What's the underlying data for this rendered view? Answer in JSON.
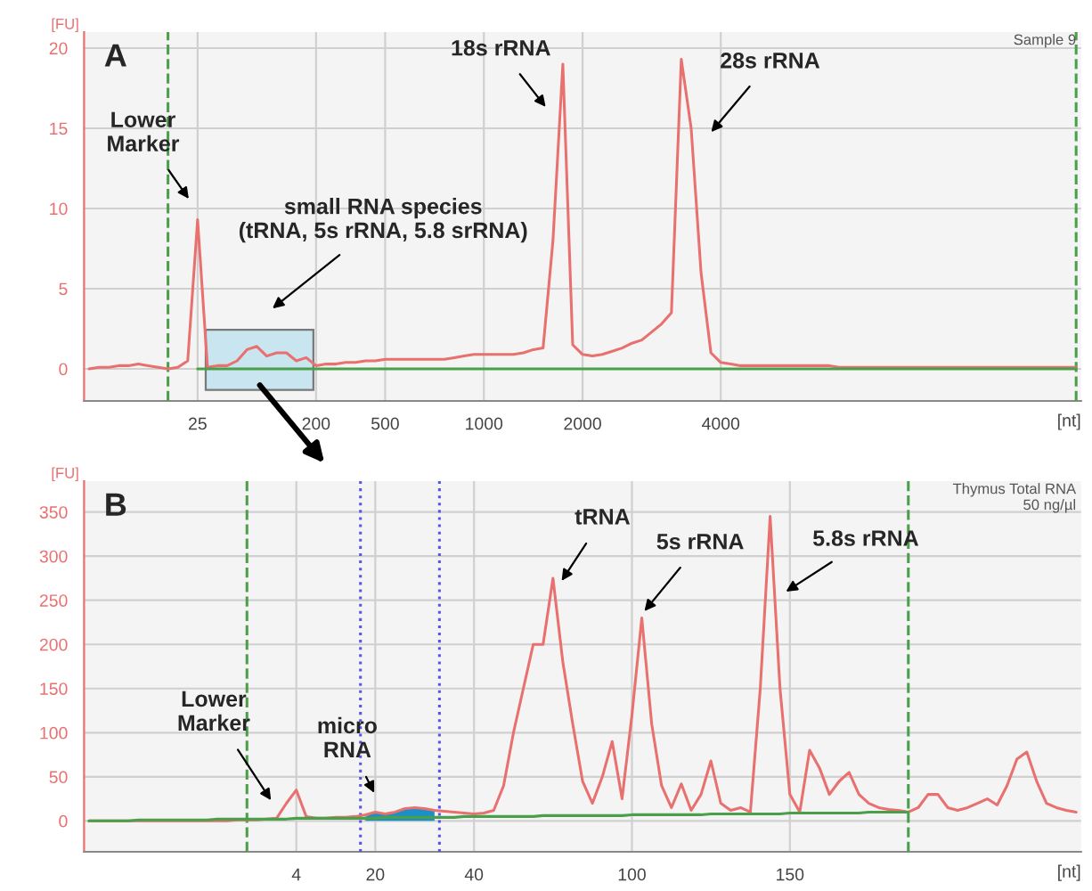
{
  "chart_data": [
    {
      "type": "line",
      "title": "A",
      "ylabel": "[FU]",
      "xlabel": "[nt]",
      "ylim": [
        -2,
        21
      ],
      "yticks": [
        0,
        5,
        10,
        15,
        20
      ],
      "grid": true,
      "categories": [
        null,
        null,
        null,
        null,
        null,
        null,
        null,
        null,
        null,
        null,
        null,
        "25",
        null,
        null,
        null,
        null,
        null,
        null,
        null,
        null,
        null,
        null,
        null,
        "200",
        null,
        null,
        null,
        null,
        null,
        null,
        "500",
        null,
        null,
        null,
        null,
        null,
        null,
        null,
        null,
        null,
        "1000",
        null,
        null,
        null,
        null,
        null,
        null,
        null,
        null,
        null,
        "2000",
        null,
        null,
        null,
        null,
        null,
        null,
        null,
        null,
        null,
        null,
        null,
        null,
        null,
        "4000",
        null,
        null,
        null,
        null,
        null,
        null,
        null,
        null,
        null,
        null,
        null,
        null,
        null,
        null,
        null,
        null,
        null,
        null,
        null,
        null,
        null,
        null,
        null,
        null,
        null,
        null,
        null,
        null,
        null,
        null,
        null,
        null,
        null,
        null,
        null,
        null
      ],
      "series": [
        {
          "color": "#e8706f",
          "values": [
            0,
            0.1,
            0.1,
            0.2,
            0.2,
            0.3,
            0.2,
            0.1,
            0,
            0.1,
            0.5,
            9.3,
            0.1,
            0.2,
            0.2,
            0.5,
            1.2,
            1.4,
            0.8,
            1.0,
            1.0,
            0.5,
            0.7,
            0.2,
            0.3,
            0.3,
            0.4,
            0.4,
            0.5,
            0.5,
            0.6,
            0.6,
            0.6,
            0.6,
            0.6,
            0.6,
            0.6,
            0.7,
            0.8,
            0.9,
            0.9,
            0.9,
            0.9,
            0.9,
            1.0,
            1.2,
            1.3,
            8,
            19,
            1.5,
            0.9,
            0.8,
            0.9,
            1.1,
            1.3,
            1.6,
            1.8,
            2.3,
            2.8,
            3.5,
            19.3,
            15,
            6,
            1,
            0.4,
            0.3,
            0.2,
            0.2,
            0.2,
            0.2,
            0.2,
            0.2,
            0.2,
            0.2,
            0.2,
            0.2,
            0.1,
            0.1,
            0.1,
            0.1,
            0.1,
            0.1,
            0.1,
            0.1,
            0.1,
            0.1,
            0.1,
            0.1,
            0.1,
            0.1,
            0.1,
            0.1,
            0.1,
            0.1,
            0.1,
            0.1,
            0.1,
            0.1,
            0.1,
            0.1,
            0.1
          ]
        },
        {
          "color": "#4aa04a",
          "values": [
            null,
            null,
            null,
            null,
            null,
            null,
            null,
            null,
            null,
            null,
            null,
            0,
            0,
            0,
            0,
            0,
            0,
            0,
            0,
            0,
            0,
            0,
            0,
            0,
            0,
            0,
            0,
            0,
            0,
            0,
            0,
            0,
            0,
            0,
            0,
            0,
            0,
            0,
            0,
            0,
            0,
            0,
            0,
            0,
            0,
            0,
            0,
            0,
            0,
            0,
            0,
            0,
            0,
            0,
            0,
            0,
            0,
            0,
            0,
            0,
            0,
            0,
            0,
            0,
            0,
            0,
            0,
            0,
            0,
            0,
            0,
            0,
            0,
            0,
            0,
            0,
            0,
            0,
            0,
            0,
            0,
            0,
            0,
            0,
            0,
            0,
            0,
            0,
            0,
            0,
            0,
            0,
            0,
            0,
            0,
            0,
            0,
            0,
            0,
            0,
            0
          ]
        }
      ],
      "annotations": [
        "Lower\nMarker",
        "small RNA species\n(tRNA, 5s rRNA, 5.8 srRNA)",
        "18s rRNA",
        "28s rRNA",
        "Sample 9"
      ]
    },
    {
      "type": "line",
      "title": "B",
      "ylabel": "[FU]",
      "xlabel": "[nt]",
      "ylim": [
        -35,
        385
      ],
      "yticks": [
        0,
        50,
        100,
        150,
        200,
        250,
        300,
        350
      ],
      "grid": true,
      "categories": [
        null,
        null,
        null,
        null,
        null,
        null,
        null,
        null,
        null,
        null,
        null,
        null,
        null,
        null,
        null,
        null,
        null,
        null,
        null,
        null,
        null,
        "4",
        null,
        null,
        null,
        null,
        null,
        null,
        null,
        "20",
        null,
        null,
        null,
        null,
        null,
        null,
        null,
        null,
        null,
        "40",
        null,
        null,
        null,
        null,
        null,
        null,
        null,
        null,
        null,
        null,
        null,
        null,
        null,
        null,
        null,
        "100",
        null,
        null,
        null,
        null,
        null,
        null,
        null,
        null,
        null,
        null,
        null,
        null,
        null,
        null,
        null,
        "150",
        null,
        null,
        null,
        null,
        null,
        null,
        null,
        null,
        null,
        null,
        null,
        null,
        null,
        null,
        null,
        null,
        null,
        null,
        null,
        null,
        null,
        null,
        null,
        null,
        null,
        null,
        null,
        null,
        null
      ],
      "series": [
        {
          "color": "#e8706f",
          "values": [
            0,
            0,
            0,
            0,
            0,
            0,
            0,
            0,
            0,
            0,
            0,
            0,
            0,
            0,
            0,
            1,
            1,
            1,
            2,
            3,
            20,
            35,
            5,
            3,
            3,
            4,
            4,
            5,
            7,
            10,
            8,
            10,
            14,
            15,
            14,
            12,
            11,
            10,
            9,
            8,
            9,
            12,
            40,
            100,
            150,
            200,
            200,
            275,
            180,
            110,
            45,
            20,
            50,
            90,
            25,
            120,
            230,
            110,
            40,
            15,
            42,
            12,
            30,
            68,
            20,
            12,
            15,
            10,
            150,
            345,
            150,
            30,
            10,
            80,
            60,
            30,
            45,
            55,
            30,
            20,
            15,
            13,
            12,
            10,
            15,
            30,
            30,
            15,
            12,
            15,
            20,
            25,
            18,
            40,
            70,
            78,
            45,
            20,
            15,
            12,
            10
          ]
        },
        {
          "color": "#4aa04a",
          "values": [
            0,
            0,
            0,
            0,
            0,
            1,
            1,
            1,
            1,
            1,
            1,
            1,
            1,
            2,
            2,
            2,
            2,
            2,
            2,
            2,
            2,
            3,
            3,
            3,
            3,
            3,
            3,
            3,
            3,
            3,
            4,
            4,
            4,
            4,
            4,
            4,
            4,
            4,
            5,
            5,
            5,
            5,
            5,
            5,
            5,
            5,
            6,
            6,
            6,
            6,
            6,
            6,
            6,
            6,
            6,
            7,
            7,
            7,
            7,
            7,
            7,
            7,
            7,
            8,
            8,
            8,
            8,
            8,
            8,
            8,
            8,
            9,
            9,
            9,
            9,
            9,
            9,
            9,
            9,
            10,
            10,
            10,
            10,
            10,
            null,
            null,
            null,
            null,
            null,
            null,
            null,
            null,
            null,
            null,
            null,
            null,
            null,
            null,
            null,
            null,
            null
          ]
        },
        {
          "type": "area",
          "color": "#1a8fc8",
          "values": [
            null,
            null,
            null,
            null,
            null,
            null,
            null,
            null,
            null,
            null,
            null,
            null,
            null,
            null,
            null,
            null,
            null,
            null,
            null,
            null,
            null,
            null,
            null,
            null,
            null,
            null,
            null,
            null,
            5,
            10,
            8,
            10,
            14,
            15,
            14,
            12,
            null,
            null,
            null,
            null,
            null,
            null,
            null,
            null,
            null,
            null,
            null,
            null,
            null,
            null,
            null,
            null,
            null,
            null,
            null,
            null,
            null,
            null,
            null,
            null,
            null,
            null,
            null,
            null,
            null,
            null,
            null,
            null,
            null,
            null,
            null,
            null,
            null,
            null,
            null,
            null,
            null,
            null,
            null,
            null,
            null,
            null,
            null,
            null,
            null,
            null,
            null,
            null,
            null,
            null,
            null,
            null,
            null,
            null,
            null,
            null,
            null,
            null,
            null,
            null,
            null
          ]
        }
      ],
      "annotations": [
        "Lower\nMarker",
        "micro\nRNA",
        "tRNA",
        "5s rRNA",
        "5.8s rRNA",
        "Thymus Total RNA\n50 ng/µl"
      ]
    }
  ]
}
